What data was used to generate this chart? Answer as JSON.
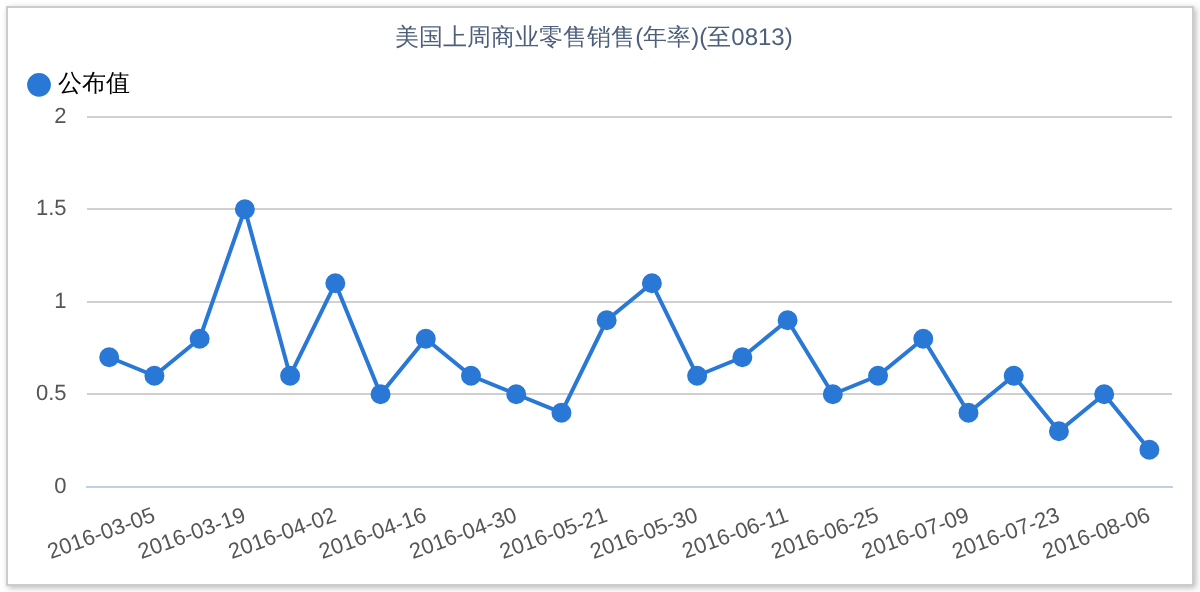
{
  "chart_data": {
    "type": "line",
    "title": "美国上周商业零售销售(年率)(至0813)",
    "categories": [
      null,
      "2016-03-05",
      null,
      "2016-03-19",
      null,
      "2016-04-02",
      null,
      "2016-04-16",
      null,
      "2016-04-30",
      null,
      "2016-05-21",
      null,
      "2016-05-30",
      null,
      "2016-06-11",
      null,
      "2016-06-25",
      null,
      "2016-07-09",
      null,
      "2016-07-23",
      null,
      "2016-08-06"
    ],
    "series": [
      {
        "name": "公布值",
        "color": "#2a78d6",
        "values": [
          0.7,
          0.6,
          0.8,
          1.5,
          0.6,
          1.1,
          0.5,
          0.8,
          0.6,
          0.5,
          0.4,
          0.9,
          1.1,
          0.6,
          0.7,
          0.9,
          0.5,
          0.6,
          0.8,
          0.4,
          0.6,
          0.3,
          0.5,
          0.2
        ]
      }
    ],
    "ylim": [
      0,
      2
    ],
    "yticks": [
      0,
      0.5,
      1,
      1.5,
      2
    ],
    "grid": "y",
    "legend": "top left",
    "marker": "circle",
    "line_style": "solid"
  }
}
